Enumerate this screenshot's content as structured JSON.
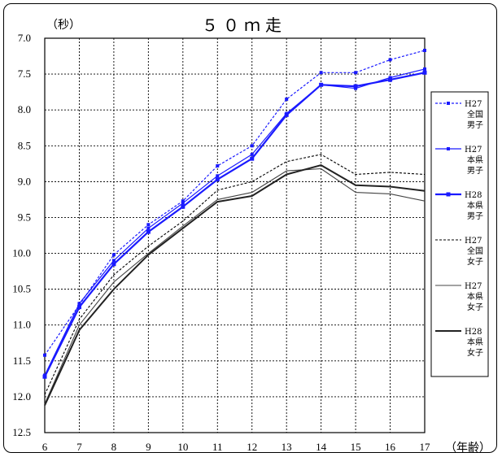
{
  "chart_data": {
    "type": "line",
    "title": "５０ｍ走",
    "y_unit_label": "（秒）",
    "x_unit_label": "（年齢）",
    "x": [
      6,
      7,
      8,
      9,
      10,
      11,
      12,
      13,
      14,
      15,
      16,
      17
    ],
    "x_tick_labels": [
      "6",
      "7",
      "8",
      "9",
      "10",
      "11",
      "12",
      "13",
      "14",
      "15",
      "16",
      "17"
    ],
    "ylim": [
      7.0,
      12.5
    ],
    "y_inverted": true,
    "y_tick_labels": [
      "7.0",
      "7.5",
      "8.0",
      "8.5",
      "9.0",
      "9.5",
      "10.0",
      "10.5",
      "11.0",
      "11.5",
      "12.0",
      "12.5"
    ],
    "grid": true,
    "legend_position": "right",
    "series": [
      {
        "legend": [
          "H27",
          "全国",
          "男子"
        ],
        "color": "#1a1aff",
        "dash": "dotted",
        "markers": true,
        "width": 1.2,
        "values": [
          11.42,
          10.72,
          10.02,
          9.6,
          9.27,
          8.78,
          8.5,
          7.85,
          7.48,
          7.48,
          7.3,
          7.17
        ]
      },
      {
        "legend": [
          "H27",
          "本県",
          "男子"
        ],
        "color": "#1a1aff",
        "dash": "solid",
        "markers": true,
        "width": 1.2,
        "values": [
          11.7,
          10.7,
          10.1,
          9.65,
          9.3,
          8.92,
          8.62,
          8.05,
          7.65,
          7.7,
          7.55,
          7.43
        ]
      },
      {
        "legend": [
          "H28",
          "本県",
          "男子"
        ],
        "color": "#1a1aff",
        "dash": "solid",
        "markers": true,
        "width": 2.2,
        "values": [
          11.72,
          10.75,
          10.15,
          9.7,
          9.35,
          8.97,
          8.68,
          8.07,
          7.65,
          7.67,
          7.58,
          7.48
        ]
      },
      {
        "legend": [
          "H27",
          "全国",
          "女子"
        ],
        "color": "#000000",
        "dash": "dotted",
        "markers": false,
        "width": 1.1,
        "values": [
          11.97,
          10.92,
          10.3,
          9.9,
          9.55,
          9.12,
          9.0,
          8.72,
          8.62,
          8.9,
          8.87,
          8.9
        ]
      },
      {
        "legend": [
          "H27",
          "本県",
          "女子"
        ],
        "color": "#444444",
        "dash": "solid",
        "markers": false,
        "width": 1.1,
        "values": [
          12.1,
          11.0,
          10.4,
          10.0,
          9.62,
          9.25,
          9.15,
          8.85,
          8.82,
          9.15,
          9.17,
          9.27
        ]
      },
      {
        "legend": [
          "H28",
          "本県",
          "女子"
        ],
        "color": "#222222",
        "dash": "solid",
        "markers": false,
        "width": 2.0,
        "values": [
          12.12,
          11.07,
          10.5,
          10.02,
          9.65,
          9.28,
          9.2,
          8.9,
          8.77,
          9.05,
          9.07,
          9.13
        ]
      }
    ]
  }
}
